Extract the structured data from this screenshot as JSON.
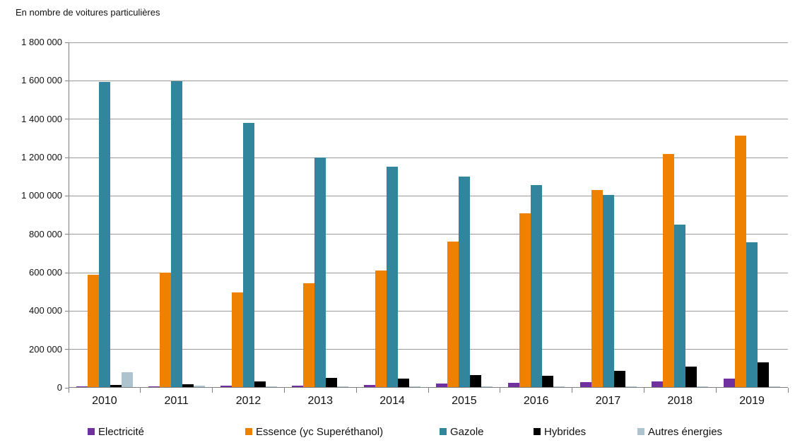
{
  "title": "En nombre de voitures particulières",
  "chart_data": {
    "type": "bar",
    "title": "En nombre de voitures particulières",
    "categories": [
      "2010",
      "2011",
      "2012",
      "2013",
      "2014",
      "2015",
      "2016",
      "2017",
      "2018",
      "2019"
    ],
    "series": [
      {
        "key": "electricite",
        "name": "Electricité",
        "color": "#7030A0",
        "values": [
          200,
          2600,
          5700,
          8800,
          10600,
          17300,
          21800,
          24900,
          31100,
          42800
        ]
      },
      {
        "key": "essence",
        "name": "Essence (yc Superéthanol)",
        "color": "#EE8100",
        "values": [
          585000,
          595000,
          493000,
          543000,
          607000,
          760000,
          905000,
          1028000,
          1215000,
          1310000
        ]
      },
      {
        "key": "gazole",
        "name": "Gazole",
        "color": "#31859C",
        "values": [
          1590000,
          1593000,
          1376000,
          1197000,
          1148000,
          1098000,
          1053000,
          1000000,
          845000,
          755000
        ]
      },
      {
        "key": "hybrides",
        "name": "Hybrides",
        "color": "#000000",
        "values": [
          9700,
          13600,
          27700,
          46800,
          42800,
          61600,
          58400,
          85000,
          106000,
          128000
        ]
      },
      {
        "key": "autres-energies",
        "name": "Autres énergies",
        "color": "#ADC3CD",
        "values": [
          76000,
          8000,
          4000,
          5000,
          3000,
          4000,
          4000,
          4000,
          3000,
          3000
        ]
      }
    ],
    "xlabel": "",
    "ylabel": "",
    "ylim": [
      0,
      1800000
    ],
    "ytick_step": 200000,
    "ytick_labels": [
      "0",
      "200 000",
      "400 000",
      "600 000",
      "800 000",
      "1 000 000",
      "1 200 000",
      "1 400 000",
      "1 600 000",
      "1 800 000"
    ],
    "grid": true,
    "legend_position": "bottom"
  },
  "colors": {
    "gridline": "#9A9A9A",
    "axis": "#808080",
    "text": "#111111",
    "background": "#FFFFFF"
  }
}
